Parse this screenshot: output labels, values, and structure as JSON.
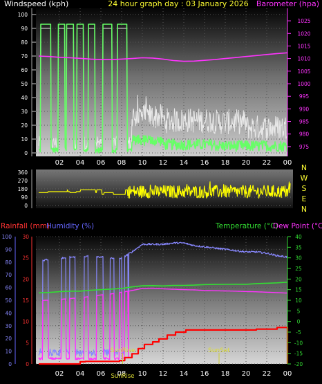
{
  "chart_data": [
    {
      "type": "line",
      "panel": "wind-baro",
      "title": "24 hour graph day : 03 January 2026",
      "left_label": "Windspeed (kph)",
      "right_label": "Barometer (hpa)",
      "x_ticks": [
        "02",
        "04",
        "06",
        "08",
        "10",
        "12",
        "14",
        "16",
        "18",
        "20",
        "22",
        "00"
      ],
      "x_range": [
        0,
        24
      ],
      "left_ticks": [
        0,
        10,
        20,
        30,
        40,
        50,
        60,
        70,
        80,
        90,
        100
      ],
      "left_range": [
        0,
        100
      ],
      "right_ticks": [
        975,
        980,
        985,
        990,
        995,
        1000,
        1005,
        1010,
        1015,
        1020,
        1025
      ],
      "right_range": [
        972.5,
        1027.5
      ],
      "series": [
        {
          "name": "Barometer",
          "color": "#ff33ff",
          "x": [
            0,
            1,
            2,
            3,
            4,
            5,
            6,
            7,
            8,
            9,
            10,
            11,
            12,
            13,
            14,
            15,
            16,
            17,
            18,
            19,
            20,
            21,
            22,
            23,
            24
          ],
          "y": [
            1011.0,
            1010.8,
            1010.5,
            1010.3,
            1010.1,
            1009.8,
            1009.6,
            1009.6,
            1009.8,
            1010.0,
            1010.3,
            1010.2,
            1009.8,
            1009.2,
            1008.9,
            1009.0,
            1009.3,
            1009.6,
            1010.0,
            1010.4,
            1010.8,
            1011.2,
            1011.6,
            1012.0,
            1012.3
          ]
        },
        {
          "name": "Gust",
          "color": "#ffffff"
        },
        {
          "name": "Wind speed",
          "color": "#66ff66"
        }
      ]
    },
    {
      "type": "line",
      "panel": "wind-direction",
      "left_ticks": [
        0,
        90,
        180,
        270,
        360
      ],
      "left_range": [
        0,
        360
      ],
      "right_labels": [
        "N",
        "W",
        "S",
        "E",
        "N"
      ],
      "series": [
        {
          "name": "Wind direction",
          "color": "#ffff00"
        }
      ]
    },
    {
      "type": "line",
      "panel": "temp-hum-rain",
      "legend": {
        "rain": "Rainfall (mm)",
        "humidity": "Humidity (%)",
        "temperature": "Temperature (°C)",
        "dewpoint": "Dew Point (°C)"
      },
      "x_ticks": [
        "02",
        "04",
        "06",
        "08",
        "10",
        "12",
        "14",
        "16",
        "18",
        "20",
        "22",
        "00"
      ],
      "humidity_ticks": [
        0,
        10,
        20,
        30,
        40,
        50,
        60,
        70,
        80,
        90,
        100
      ],
      "humidity_range": [
        0,
        100
      ],
      "rain_ticks": [
        0,
        5,
        10,
        15,
        20,
        25,
        30
      ],
      "rain_range": [
        0,
        30
      ],
      "temp_ticks": [
        -20,
        -15,
        -10,
        -5,
        0,
        5,
        10,
        15,
        20,
        25,
        30,
        35,
        40
      ],
      "temp_range": [
        -20,
        40
      ],
      "sunrise_label": "SunRise",
      "sunset_label": "SunSet",
      "sunrise_hour": 8.1,
      "sunset_hour": 17.4,
      "series": [
        {
          "name": "Humidity",
          "color": "#8888ff",
          "x": [
            0,
            1,
            2,
            3,
            4,
            5,
            6,
            7,
            8,
            9,
            10,
            11,
            12,
            13,
            14,
            15,
            16,
            17,
            18,
            19,
            20,
            21,
            22,
            23,
            24
          ],
          "y": [
            81,
            82,
            83,
            84,
            84,
            85,
            84,
            83,
            83,
            88,
            94,
            94,
            94,
            95,
            95,
            93,
            92,
            91,
            90,
            89,
            88,
            88,
            87,
            85,
            84
          ]
        },
        {
          "name": "Temperature",
          "color": "#33dd33",
          "x": [
            0,
            1,
            2,
            3,
            4,
            5,
            6,
            7,
            8,
            9,
            10,
            11,
            12,
            13,
            14,
            15,
            16,
            17,
            18,
            19,
            20,
            21,
            22,
            23,
            24
          ],
          "y": [
            13.5,
            13.7,
            14.0,
            14.2,
            14.4,
            14.8,
            15.0,
            15.2,
            15.5,
            16.2,
            16.8,
            16.9,
            16.8,
            17.0,
            17.1,
            17.1,
            17.3,
            17.4,
            17.5,
            17.6,
            17.6,
            17.8,
            18.0,
            18.3,
            18.5
          ]
        },
        {
          "name": "Dew Point",
          "color": "#ff33ff",
          "x": [
            0,
            1,
            2,
            3,
            4,
            5,
            6,
            7,
            8,
            9,
            10,
            11,
            12,
            13,
            14,
            15,
            16,
            17,
            18,
            19,
            20,
            21,
            22,
            23,
            24
          ],
          "y": [
            9.8,
            10.1,
            10.4,
            10.8,
            11.2,
            11.8,
            12.5,
            13.0,
            13.8,
            14.6,
            15.6,
            15.7,
            15.4,
            15.2,
            15.0,
            14.9,
            14.6,
            14.5,
            14.4,
            14.3,
            14.1,
            14.0,
            13.8,
            13.6,
            13.4
          ]
        },
        {
          "name": "Rainfall",
          "color": "#ff0000",
          "x": [
            0,
            4.0,
            4.5,
            7.8,
            8.3,
            9.0,
            9.6,
            10.2,
            11.0,
            11.6,
            12.4,
            13.2,
            14.2,
            17.0,
            21.0,
            23.0,
            24
          ],
          "y": [
            0,
            0.5,
            0.6,
            0.8,
            1.5,
            2.4,
            3.6,
            4.6,
            5.2,
            5.9,
            6.8,
            7.5,
            8.0,
            8.0,
            8.2,
            8.6,
            8.6
          ]
        }
      ]
    }
  ]
}
